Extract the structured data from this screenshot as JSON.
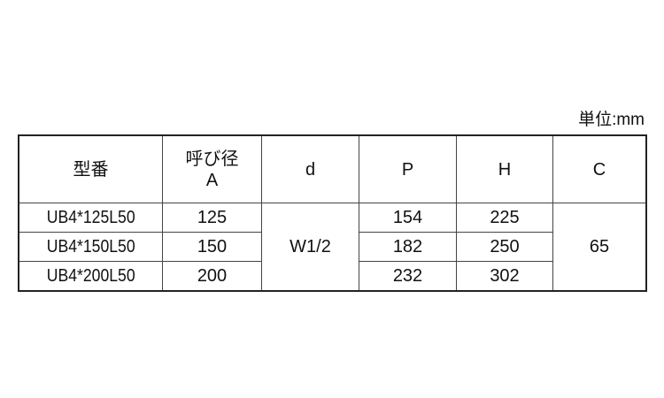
{
  "unit_label": "単位:mm",
  "table": {
    "headers": [
      "型番",
      "呼び径",
      "A",
      "d",
      "P",
      "H",
      "C"
    ],
    "rows": [
      {
        "model": "UB4*125L50",
        "A": "125",
        "P": "154",
        "H": "225"
      },
      {
        "model": "UB4*150L50",
        "A": "150",
        "P": "182",
        "H": "250"
      },
      {
        "model": "UB4*200L50",
        "A": "200",
        "P": "232",
        "H": "302"
      }
    ],
    "d_merged": "W1/2",
    "C_merged": "65"
  }
}
